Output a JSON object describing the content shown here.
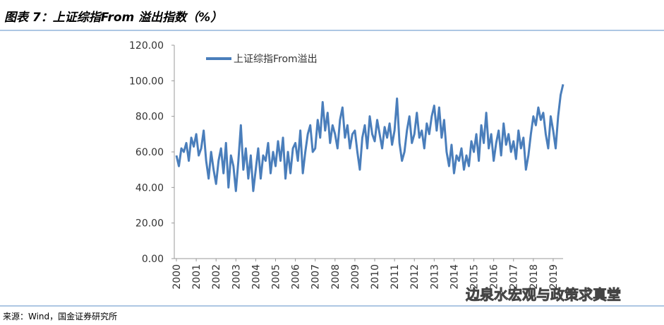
{
  "chart_data": {
    "type": "line",
    "title": "图表 7：上证综指From 溢出指数（%）",
    "source": "来源：Wind，国金证券研究所",
    "watermark": "边泉水宏观与政策求真堂",
    "x": [
      2000,
      2000.125,
      2000.25,
      2000.375,
      2000.5,
      2000.625,
      2000.75,
      2000.875,
      2001,
      2001.125,
      2001.25,
      2001.375,
      2001.5,
      2001.625,
      2001.75,
      2001.875,
      2002,
      2002.125,
      2002.25,
      2002.375,
      2002.5,
      2002.625,
      2002.75,
      2002.875,
      2003,
      2003.125,
      2003.25,
      2003.375,
      2003.5,
      2003.625,
      2003.75,
      2003.875,
      2004,
      2004.125,
      2004.25,
      2004.375,
      2004.5,
      2004.625,
      2004.75,
      2004.875,
      2005,
      2005.125,
      2005.25,
      2005.375,
      2005.5,
      2005.625,
      2005.75,
      2005.875,
      2006,
      2006.125,
      2006.25,
      2006.375,
      2006.5,
      2006.625,
      2006.75,
      2006.875,
      2007,
      2007.125,
      2007.25,
      2007.375,
      2007.5,
      2007.625,
      2007.75,
      2007.875,
      2008,
      2008.125,
      2008.25,
      2008.375,
      2008.5,
      2008.625,
      2008.75,
      2008.875,
      2009,
      2009.125,
      2009.25,
      2009.375,
      2009.5,
      2009.625,
      2009.75,
      2009.875,
      2010,
      2010.125,
      2010.25,
      2010.375,
      2010.5,
      2010.625,
      2010.75,
      2010.875,
      2011,
      2011.125,
      2011.25,
      2011.375,
      2011.5,
      2011.625,
      2011.75,
      2011.875,
      2012,
      2012.125,
      2012.25,
      2012.375,
      2012.5,
      2012.625,
      2012.75,
      2012.875,
      2013,
      2013.125,
      2013.25,
      2013.375,
      2013.5,
      2013.625,
      2013.75,
      2013.875,
      2014,
      2014.125,
      2014.25,
      2014.375,
      2014.5,
      2014.625,
      2014.75,
      2014.875,
      2015,
      2015.125,
      2015.25,
      2015.375,
      2015.5,
      2015.625,
      2015.75,
      2015.875,
      2016,
      2016.125,
      2016.25,
      2016.375,
      2016.5,
      2016.625,
      2016.75,
      2016.875,
      2017,
      2017.125,
      2017.25,
      2017.375,
      2017.5,
      2017.625,
      2017.75,
      2017.875,
      2018,
      2018.125,
      2018.25,
      2018.375,
      2018.5,
      2018.625,
      2018.75,
      2018.875,
      2019,
      2019.125,
      2019.25,
      2019.375,
      2019.5
    ],
    "series": [
      {
        "name": "上证综指From溢出",
        "color": "#4a7ebb",
        "values": [
          58,
          52,
          62,
          60,
          65,
          55,
          68,
          63,
          70,
          58,
          62,
          72,
          55,
          45,
          60,
          50,
          42,
          55,
          62,
          48,
          65,
          40,
          58,
          52,
          38,
          55,
          75,
          50,
          62,
          45,
          58,
          38,
          50,
          62,
          45,
          58,
          55,
          65,
          48,
          60,
          52,
          66,
          55,
          68,
          45,
          60,
          48,
          62,
          65,
          55,
          72,
          48,
          60,
          70,
          75,
          60,
          62,
          78,
          68,
          88,
          72,
          82,
          65,
          75,
          70,
          62,
          78,
          85,
          68,
          75,
          62,
          70,
          72,
          60,
          50,
          68,
          75,
          62,
          80,
          70,
          66,
          78,
          70,
          62,
          74,
          68,
          76,
          64,
          72,
          90,
          65,
          55,
          60,
          72,
          80,
          65,
          70,
          82,
          68,
          72,
          62,
          76,
          70,
          80,
          86,
          72,
          85,
          68,
          78,
          60,
          52,
          64,
          48,
          58,
          55,
          62,
          50,
          58,
          52,
          66,
          60,
          70,
          55,
          75,
          65,
          82,
          62,
          70,
          55,
          65,
          72,
          58,
          76,
          64,
          70,
          60,
          66,
          56,
          72,
          62,
          68,
          50,
          58,
          70,
          80,
          75,
          85,
          78,
          82,
          70,
          62,
          80,
          72,
          62,
          80,
          92,
          98
        ]
      }
    ],
    "xlim": [
      2000,
      2019.5
    ],
    "xticks": [
      2000,
      2001,
      2002,
      2003,
      2004,
      2005,
      2006,
      2007,
      2008,
      2009,
      2010,
      2011,
      2012,
      2013,
      2014,
      2015,
      2016,
      2017,
      2018,
      2019
    ],
    "ylim": [
      0,
      120
    ],
    "yticks": [
      {
        "value": 0,
        "label": "0.00"
      },
      {
        "value": 20,
        "label": "20.00"
      },
      {
        "value": 40,
        "label": "40.00"
      },
      {
        "value": 60,
        "label": "60.00"
      },
      {
        "value": 80,
        "label": "80.00"
      },
      {
        "value": 100,
        "label": "100.00"
      },
      {
        "value": 120,
        "label": "120.00"
      }
    ],
    "grid": false,
    "legend": "top-left"
  }
}
